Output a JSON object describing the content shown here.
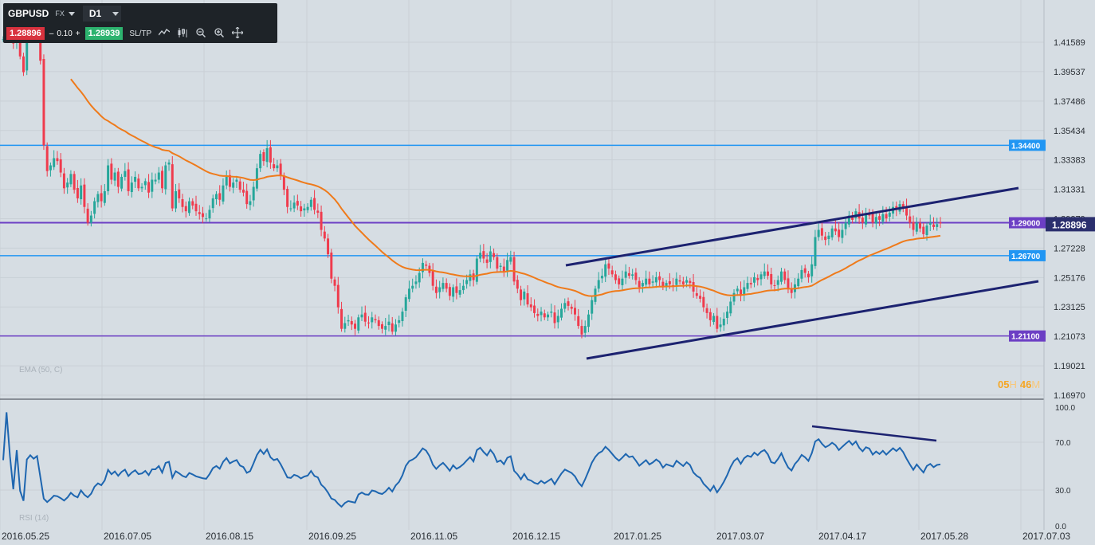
{
  "toolbar": {
    "symbol": "GBPUSD",
    "market": "FX",
    "timeframe": "D1",
    "bid": "1.28896",
    "spread_minus": "–",
    "spread": "0.10",
    "spread_plus": "+",
    "ask": "1.28939",
    "sltp": "SL/TP",
    "tools": [
      "line-chart-icon",
      "candles-icon",
      "zoom-out-icon",
      "zoom-in-icon",
      "crosshair-icon"
    ]
  },
  "price_axis": [
    "1.41589",
    "1.39537",
    "1.37486",
    "1.35434",
    "1.33383",
    "1.31331",
    "1.29279",
    "1.27228",
    "1.25176",
    "1.23125",
    "1.21073",
    "1.19021",
    "1.16970"
  ],
  "rsi_axis": [
    "100.0",
    "70.0",
    "30.0",
    "0.0"
  ],
  "date_axis": [
    "2016.05.25",
    "2016.07.05",
    "2016.08.15",
    "2016.09.25",
    "2016.11.05",
    "2016.12.15",
    "2017.01.25",
    "2017.03.07",
    "2017.04.17",
    "2017.05.28",
    "2017.07.03"
  ],
  "levels": [
    {
      "label": "1.34400",
      "value": 1.344,
      "color": "#2196f3"
    },
    {
      "label": "1.29000",
      "value": 1.29,
      "color": "#6c3fc4"
    },
    {
      "label": "1.26700",
      "value": 1.267,
      "color": "#2196f3"
    },
    {
      "label": "1.21100",
      "value": 1.211,
      "color": "#6c3fc4"
    }
  ],
  "current_price": {
    "label": "1.28896",
    "value": 1.28896
  },
  "ema_label": "EMA (50, C)",
  "rsi_label": "RSI (14)",
  "countdown": {
    "hours": "05",
    "h": "H",
    "minutes": "46",
    "m": "M"
  },
  "colors": {
    "up": "#26a69a",
    "down": "#ef3b4d",
    "ema": "#ef7a1a",
    "rsi": "#1e66b0",
    "trend": "#1c2270",
    "bg": "#d6dde3",
    "grid": "#c9d0d6"
  },
  "chart_data": {
    "type": "candlestick",
    "symbol": "GBPUSD",
    "timeframe": "D1",
    "x_ticks": [
      "2016.05.25",
      "2016.07.05",
      "2016.08.15",
      "2016.09.25",
      "2016.11.05",
      "2016.12.15",
      "2017.01.25",
      "2017.03.07",
      "2017.04.17",
      "2017.05.28",
      "2017.07.03"
    ],
    "y_ticks": [
      1.41589,
      1.39537,
      1.37486,
      1.35434,
      1.33383,
      1.31331,
      1.29279,
      1.27228,
      1.25176,
      1.23125,
      1.21073,
      1.19021,
      1.1697
    ],
    "ylim": [
      1.1697,
      1.43
    ],
    "close_series": [
      1.418,
      1.421,
      1.419,
      1.415,
      1.422,
      1.406,
      1.395,
      1.423,
      1.428,
      1.425,
      1.428,
      1.403,
      1.344,
      1.326,
      1.33,
      1.335,
      1.333,
      1.325,
      1.314,
      1.318,
      1.324,
      1.313,
      1.307,
      1.316,
      1.301,
      1.29,
      1.295,
      1.305,
      1.31,
      1.305,
      1.312,
      1.33,
      1.32,
      1.325,
      1.315,
      1.322,
      1.326,
      1.312,
      1.318,
      1.322,
      1.314,
      1.315,
      1.319,
      1.311,
      1.32,
      1.32,
      1.325,
      1.314,
      1.33,
      1.332,
      1.3,
      1.312,
      1.307,
      1.301,
      1.298,
      1.305,
      1.302,
      1.298,
      1.296,
      1.294,
      1.293,
      1.299,
      1.307,
      1.31,
      1.306,
      1.316,
      1.322,
      1.315,
      1.318,
      1.32,
      1.313,
      1.311,
      1.303,
      1.305,
      1.315,
      1.328,
      1.338,
      1.333,
      1.342,
      1.332,
      1.328,
      1.33,
      1.323,
      1.313,
      1.301,
      1.3,
      1.304,
      1.302,
      1.298,
      1.3,
      1.301,
      1.306,
      1.299,
      1.297,
      1.285,
      1.279,
      1.268,
      1.251,
      1.246,
      1.231,
      1.216,
      1.22,
      1.222,
      1.219,
      1.216,
      1.224,
      1.226,
      1.221,
      1.22,
      1.224,
      1.222,
      1.218,
      1.216,
      1.218,
      1.221,
      1.214,
      1.219,
      1.222,
      1.228,
      1.238,
      1.244,
      1.246,
      1.249,
      1.255,
      1.262,
      1.26,
      1.255,
      1.246,
      1.241,
      1.245,
      1.248,
      1.244,
      1.239,
      1.245,
      1.241,
      1.243,
      1.246,
      1.25,
      1.254,
      1.25,
      1.265,
      1.269,
      1.265,
      1.262,
      1.27,
      1.266,
      1.258,
      1.26,
      1.256,
      1.264,
      1.266,
      1.249,
      1.244,
      1.236,
      1.242,
      1.233,
      1.231,
      1.227,
      1.225,
      1.228,
      1.224,
      1.226,
      1.228,
      1.22,
      1.225,
      1.23,
      1.234,
      1.232,
      1.23,
      1.226,
      1.218,
      1.212,
      1.218,
      1.226,
      1.236,
      1.244,
      1.25,
      1.253,
      1.261,
      1.258,
      1.254,
      1.25,
      1.247,
      1.251,
      1.256,
      1.253,
      1.254,
      1.25,
      1.245,
      1.248,
      1.251,
      1.247,
      1.249,
      1.252,
      1.25,
      1.245,
      1.248,
      1.247,
      1.246,
      1.251,
      1.249,
      1.247,
      1.25,
      1.248,
      1.242,
      1.239,
      1.237,
      1.231,
      1.227,
      1.222,
      1.225,
      1.216,
      1.219,
      1.223,
      1.228,
      1.235,
      1.241,
      1.244,
      1.239,
      1.245,
      1.248,
      1.247,
      1.252,
      1.25,
      1.254,
      1.256,
      1.253,
      1.247,
      1.246,
      1.25,
      1.256,
      1.25,
      1.244,
      1.241,
      1.247,
      1.251,
      1.257,
      1.255,
      1.252,
      1.261,
      1.28,
      1.285,
      1.281,
      1.278,
      1.281,
      1.286,
      1.284,
      1.28,
      1.285,
      1.29,
      1.295,
      1.292,
      1.298,
      1.293,
      1.29,
      1.296,
      1.295,
      1.29,
      1.294,
      1.292,
      1.296,
      1.293,
      1.297,
      1.301,
      1.299,
      1.303,
      1.3,
      1.295,
      1.29,
      1.285,
      1.29,
      1.286,
      1.282,
      1.288,
      1.29,
      1.287,
      1.289,
      1.2895
    ],
    "ema50_period": 50,
    "rsi_period": 14,
    "rsi_ylim": [
      0,
      100
    ],
    "rsi_ticks": [
      100,
      70,
      30,
      0
    ],
    "horizontal_levels": [
      1.344,
      1.29,
      1.267,
      1.211
    ],
    "current_price": 1.28896
  }
}
